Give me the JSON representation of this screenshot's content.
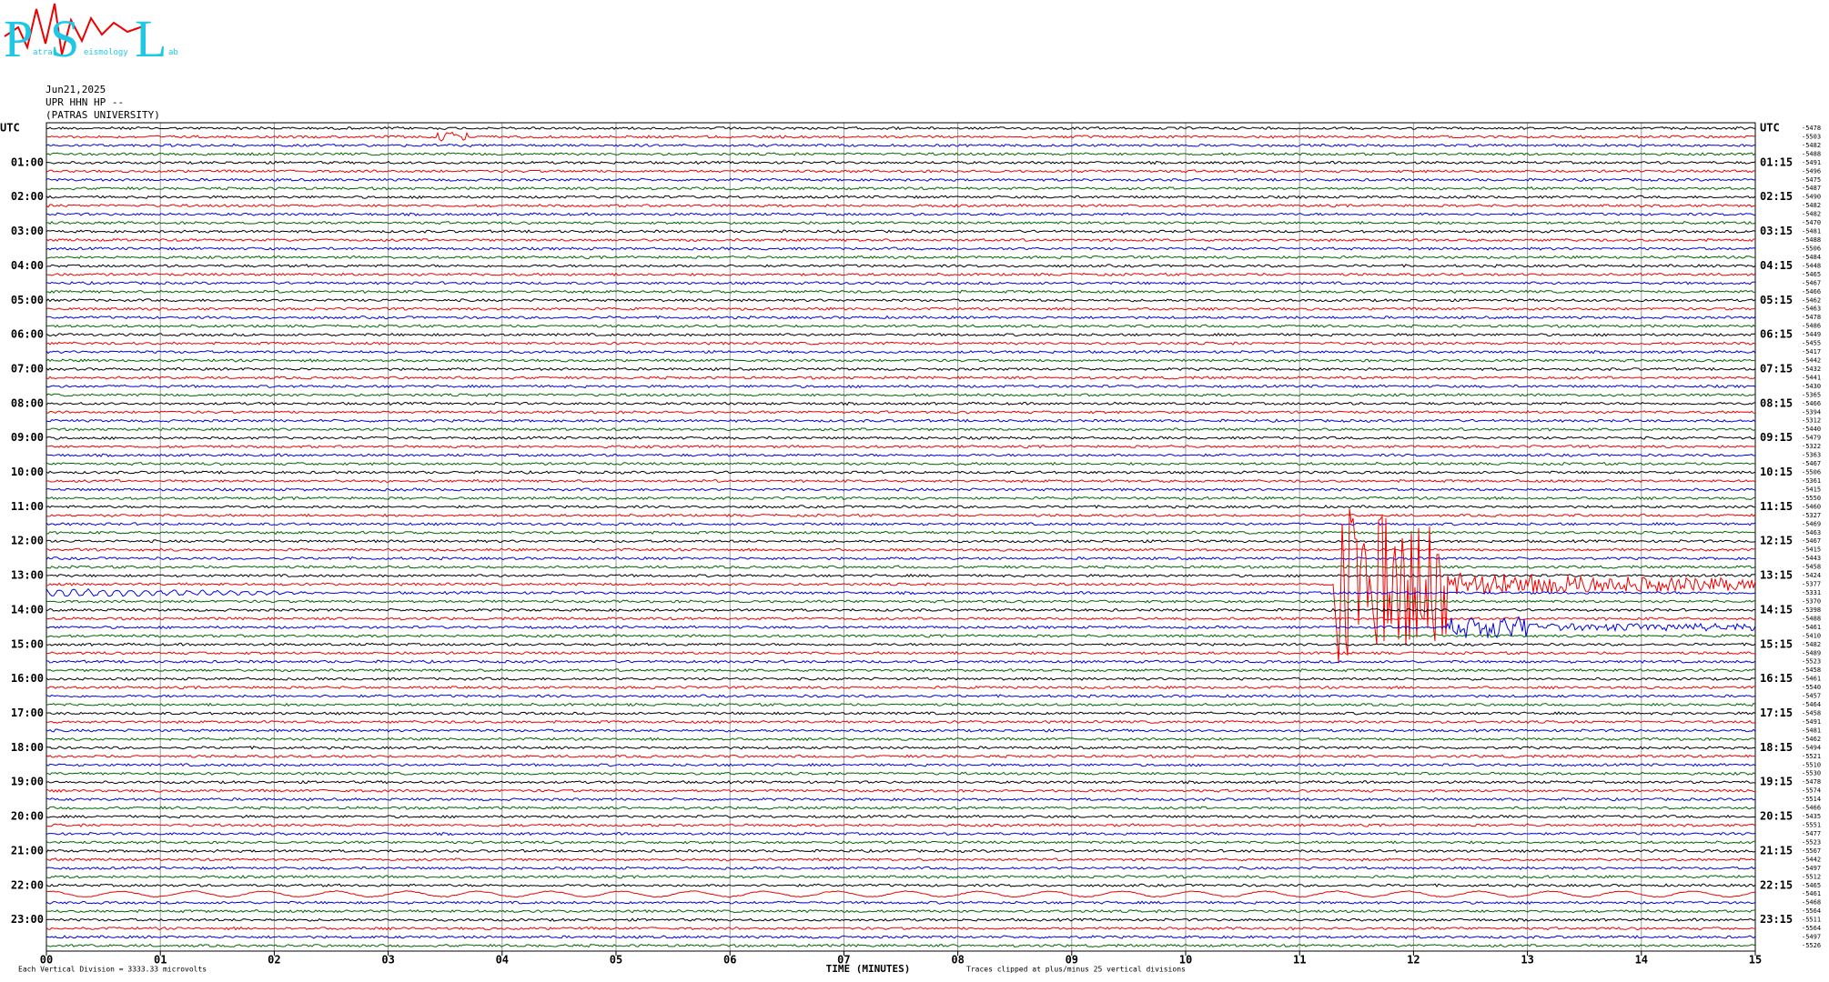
{
  "header": {
    "logo": {
      "letters": [
        "P",
        "S",
        "L"
      ],
      "words": [
        "atras",
        "eismology",
        "ab"
      ]
    },
    "date": "Jun21,2025",
    "station": "UPR HHN HP --",
    "institution": "(PATRAS UNIVERSITY)"
  },
  "left_labels": [
    "UTC",
    "01:00",
    "02:00",
    "03:00",
    "04:00",
    "05:00",
    "06:00",
    "07:00",
    "08:00",
    "09:00",
    "10:00",
    "11:00",
    "12:00",
    "13:00",
    "14:00",
    "15:00",
    "16:00",
    "17:00",
    "18:00",
    "19:00",
    "20:00",
    "21:00",
    "22:00",
    "23:00"
  ],
  "right_labels": [
    "UTC",
    "01:15",
    "02:15",
    "03:15",
    "04:15",
    "05:15",
    "06:15",
    "07:15",
    "08:15",
    "09:15",
    "10:15",
    "11:15",
    "12:15",
    "13:15",
    "14:15",
    "15:15",
    "16:15",
    "17:15",
    "18:15",
    "19:15",
    "20:15",
    "21:15",
    "22:15",
    "23:15"
  ],
  "trace_offsets": [
    -5478,
    -5503,
    -5482,
    -5488,
    -5491,
    -5496,
    -5475,
    -5487,
    -5490,
    -5482,
    -5482,
    -5470,
    -5481,
    -5488,
    -5506,
    -5484,
    -5448,
    -5465,
    -5467,
    -5466,
    -5462,
    -5463,
    -5478,
    -5486,
    -5449,
    -5455,
    -5417,
    -5442,
    -5432,
    -5441,
    -5430,
    -5365,
    -5466,
    -5394,
    -5312,
    -5440,
    -5479,
    -5322,
    -5363,
    -5467,
    -5506,
    -5361,
    -5415,
    -5550,
    -5460,
    -5327,
    -5469,
    -5463,
    -5467,
    -5415,
    -5443,
    -5458,
    -5424,
    -5377,
    -5331,
    -5370,
    -5398,
    -5488,
    -5461,
    -5410,
    -5482,
    -5489,
    -5523,
    -5458,
    -5461,
    -5540,
    -5457,
    -5464,
    -5458,
    -5491,
    -5481,
    -5462,
    -5494,
    -5521,
    -5510,
    -5530,
    -5478,
    -5574,
    -5514,
    -5466,
    -5435,
    -5551,
    -5477,
    -5523,
    -5567,
    -5442,
    -5497,
    -5512,
    -5465,
    -5461,
    -5468,
    -5564,
    -5511,
    -5564,
    -5497,
    -5526
  ],
  "x_axis": {
    "ticks": [
      "00",
      "01",
      "02",
      "03",
      "04",
      "05",
      "06",
      "07",
      "08",
      "09",
      "10",
      "11",
      "12",
      "13",
      "14",
      "15"
    ],
    "label": "TIME (MINUTES)"
  },
  "footer": {
    "scale_note": "Each Vertical Division = 3333.33 microvolts",
    "clip_note": "Traces clipped at plus/minus 25 vertical divisions"
  }
}
